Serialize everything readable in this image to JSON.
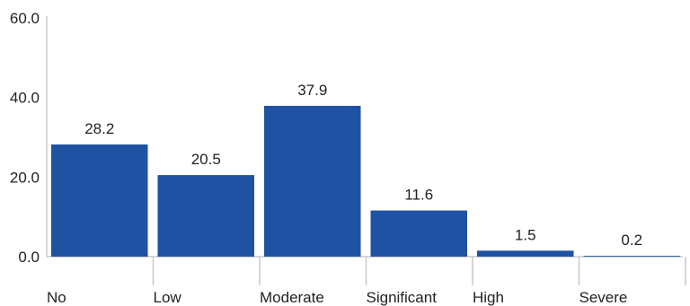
{
  "chart_data": {
    "type": "bar",
    "categories": [
      "No",
      "Low",
      "Moderate",
      "Significant",
      "High",
      "Severe"
    ],
    "values": [
      28.2,
      20.5,
      37.9,
      11.6,
      1.5,
      0.2
    ],
    "value_labels": [
      "28.2",
      "20.5",
      "37.9",
      "11.6",
      "1.5",
      "0.2"
    ],
    "y_ticks": [
      "0.0",
      "20.0",
      "40.0",
      "60.0"
    ],
    "ylim": [
      0,
      60
    ],
    "grid": false,
    "legend": "none",
    "bar_color": "#1f52a3",
    "axis_color": "#c8c8c8"
  }
}
